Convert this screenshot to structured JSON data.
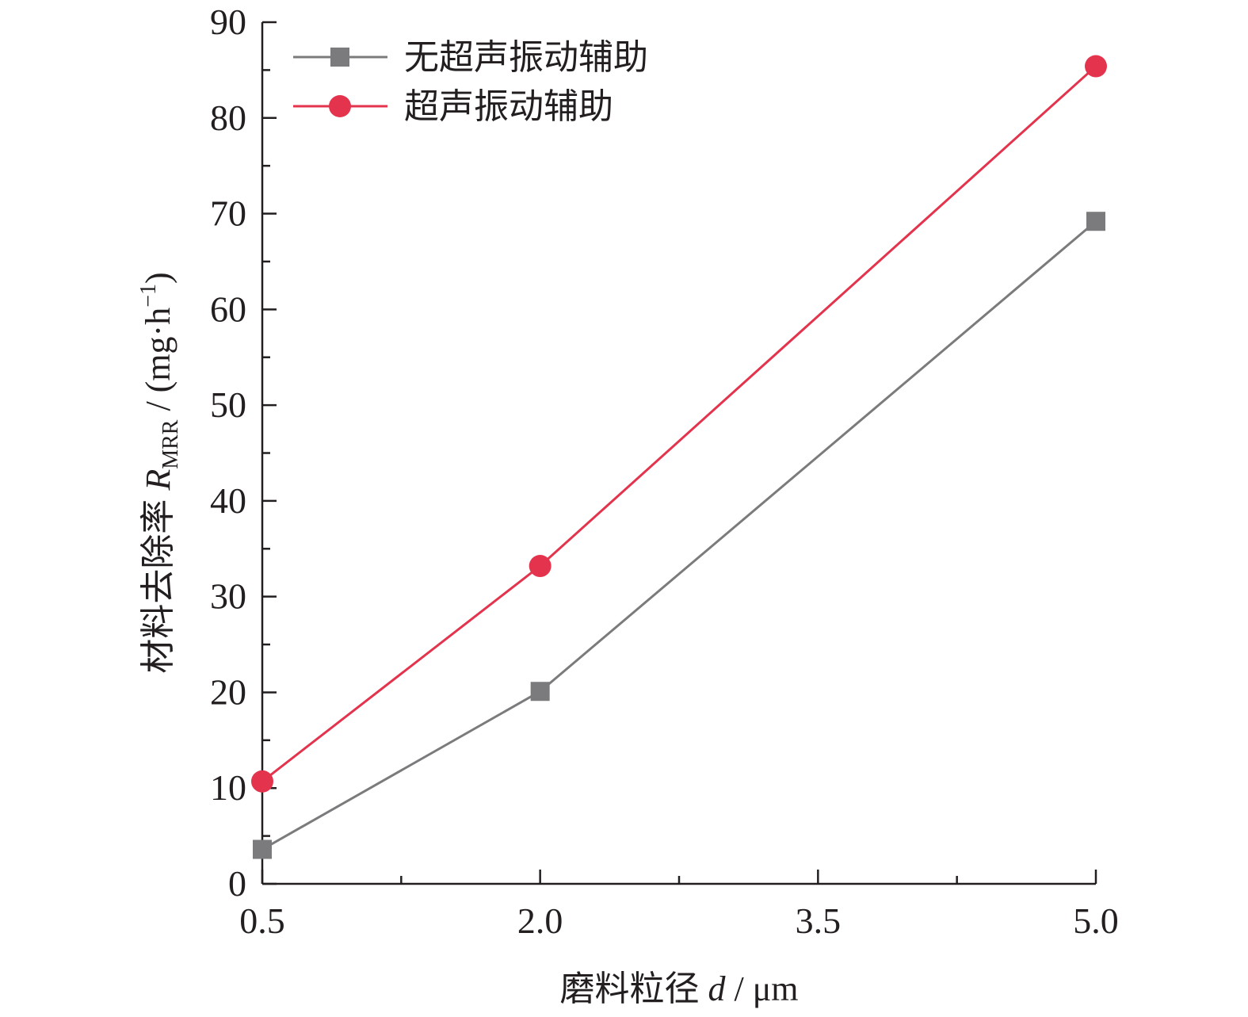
{
  "chart_data": {
    "type": "line",
    "x": [
      0.5,
      2.0,
      5.0
    ],
    "xlim": [
      0.5,
      5.0
    ],
    "ylim": [
      0,
      90
    ],
    "xticks": [
      0.5,
      2.0,
      3.5,
      5.0
    ],
    "xtick_labels": [
      "0.5",
      "2.0",
      "3.5",
      "5.0"
    ],
    "yticks": [
      0,
      10,
      20,
      30,
      40,
      50,
      60,
      70,
      80,
      90
    ],
    "ytick_labels": [
      "0",
      "10",
      "20",
      "30",
      "40",
      "50",
      "60",
      "70",
      "80",
      "90"
    ],
    "xlabel": {
      "main": "磨料粒径 ",
      "var": "d",
      "unit": " / μm"
    },
    "ylabel": {
      "main": "材料去除率 ",
      "var": "R",
      "sub": "MRR",
      "unit_open": " / (mg·h",
      "sup": "−1",
      "unit_close": ")"
    },
    "grid": false,
    "legend_position": "top-left",
    "series": [
      {
        "name": "无超声振动辅助",
        "marker": "square",
        "color": "#7b7b7d",
        "values": [
          3.6,
          20.1,
          69.2
        ]
      },
      {
        "name": "超声振动辅助",
        "marker": "circle",
        "color": "#e4334d",
        "values": [
          10.7,
          33.2,
          85.4
        ]
      }
    ]
  }
}
